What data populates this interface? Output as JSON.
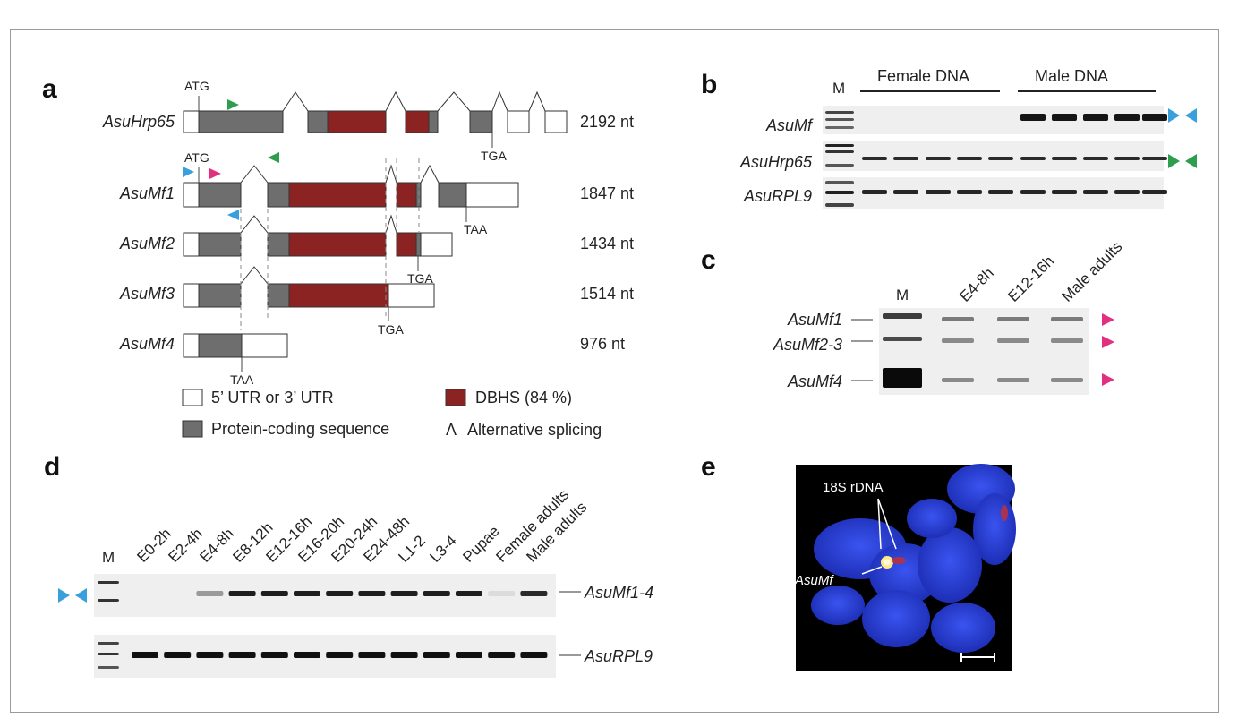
{
  "panels": {
    "a": {
      "label": "a",
      "genes": [
        {
          "name": "AsuHrp65",
          "length": "2192 nt"
        },
        {
          "name": "AsuMf1",
          "length": "1847 nt"
        },
        {
          "name": "AsuMf2",
          "length": "1434 nt"
        },
        {
          "name": "AsuMf3",
          "length": "1514 nt"
        },
        {
          "name": "AsuMf4",
          "length": "976 nt"
        }
      ],
      "codon_labels": {
        "start": "ATG",
        "stop_tga": "TGA",
        "stop_taa": "TAA"
      },
      "legend": {
        "utr": "5’ UTR or 3’ UTR",
        "dbhs": "DBHS (84 %)",
        "cds": "Protein-coding sequence",
        "splicing": "Alternative splicing",
        "splicing_symbol": "Λ"
      }
    },
    "b": {
      "label": "b",
      "marker": "M",
      "groups": [
        "Female DNA",
        "Male DNA"
      ],
      "rows": [
        "AsuMf",
        "AsuHrp65",
        "AsuRPL9"
      ]
    },
    "c": {
      "label": "c",
      "lanes": [
        "M",
        "E4-8h",
        "E12-16h",
        "Male adults"
      ],
      "bands": [
        "AsuMf1",
        "AsuMf2-3",
        "AsuMf4"
      ]
    },
    "d": {
      "label": "d",
      "lanes": [
        "M",
        "E0-2h",
        "E2-4h",
        "E4-8h",
        "E8-12h",
        "E12-16h",
        "E16-20h",
        "E20-24h",
        "E24-48h",
        "L1-2",
        "L3-4",
        "Pupae",
        "Female adults",
        "Male adults"
      ],
      "rows": [
        "AsuMf1-4",
        "AsuRPL9"
      ]
    },
    "e": {
      "label": "e",
      "probe_label": "18S rDNA",
      "gene_label": "AsuMf"
    }
  },
  "colors": {
    "utr": "#ffffff",
    "cds": "#6e6e6e",
    "dbhs": "#8b2323",
    "primer_green": "#2e9e4e",
    "primer_blue": "#3aa0dc",
    "primer_magenta": "#e0307f",
    "fish_bg": "#000000",
    "fish_blue": "#2a3fd8"
  }
}
